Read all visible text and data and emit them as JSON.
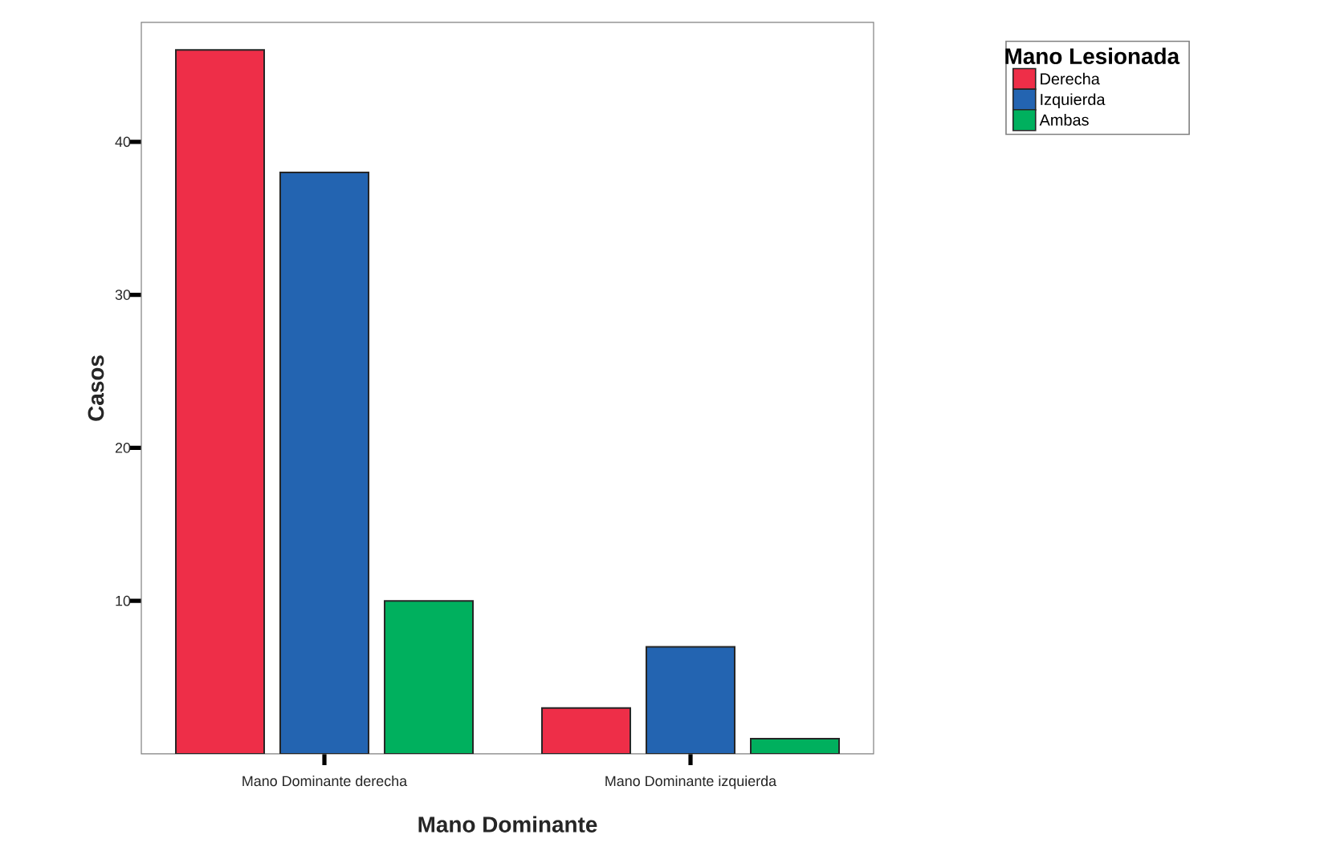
{
  "chart_data": {
    "type": "bar",
    "xlabel": "Mano Dominante",
    "ylabel": "Casos",
    "legend_title": "Mano Lesionada",
    "legend": "top right",
    "categories": [
      "Mano Dominante derecha",
      "Mano Dominante izquierda"
    ],
    "series": [
      {
        "name": "Derecha",
        "color": "#ee2e48",
        "values": [
          46,
          3
        ]
      },
      {
        "name": "Izquierda",
        "color": "#2364b1",
        "values": [
          38,
          7
        ]
      },
      {
        "name": "Ambas",
        "color": "#00b05e",
        "values": [
          10,
          1
        ]
      }
    ],
    "ylim": [
      0,
      47.8
    ],
    "yticks": [
      10,
      20,
      30,
      40
    ],
    "grid": false
  }
}
